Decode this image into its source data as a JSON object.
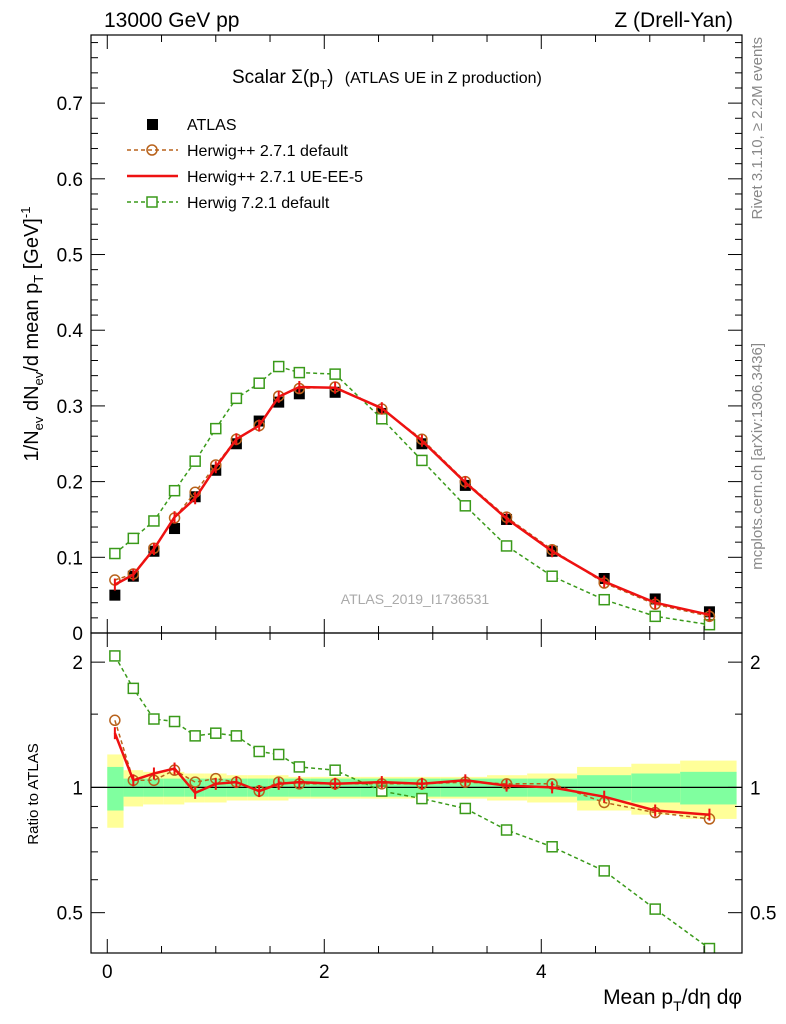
{
  "header": {
    "left": "13000 GeV pp",
    "right": "Z (Drell-Yan)"
  },
  "side_labels": {
    "rivet": "Rivet 3.1.10, ≥ 2.2M events",
    "mcplots": "mcplots.cern.ch [arXiv:1306.3436]"
  },
  "watermark": "ATLAS_2019_I1736531",
  "colors": {
    "atlas": "#000000",
    "herwigpp_default": "#b8621b",
    "herwigpp_ueee5": "#ee1111",
    "herwig7": "#3a9a1a",
    "band_inner": "#80ff9f",
    "band_outer": "#ffff99"
  },
  "chart_data": [
    {
      "type": "scatter",
      "panel": "main",
      "title": "Scalar Σ(pT) (ATLAS UE in Z production)",
      "title_main": "Scalar Σ(p",
      "title_sub": "T",
      "title_close": ")",
      "title_extra": "(ATLAS UE in Z production)",
      "ylabel": "1/Nev dNev/d mean pT [GeV]-1",
      "ylabel_parts": [
        "1/N",
        "ev",
        " dN",
        "ev",
        "/d mean p",
        "T",
        " [GeV]",
        "-1"
      ],
      "xlim": [
        -0.15,
        5.85
      ],
      "ylim": [
        0,
        0.79
      ],
      "yticks": [
        0,
        0.1,
        0.2,
        0.3,
        0.4,
        0.5,
        0.6,
        0.7
      ],
      "ytick_labels": [
        "0",
        "0.1",
        "0.2",
        "0.3",
        "0.4",
        "0.5",
        "0.6",
        "0.7"
      ],
      "x": [
        0.07,
        0.24,
        0.43,
        0.62,
        0.81,
        1.0,
        1.19,
        1.4,
        1.58,
        1.77,
        2.1,
        2.53,
        2.9,
        3.3,
        3.68,
        4.1,
        4.58,
        5.05,
        5.55
      ],
      "series": [
        {
          "name": "ATLAS",
          "key": "atlas",
          "values": [
            0.05,
            0.075,
            0.108,
            0.138,
            0.18,
            0.215,
            0.25,
            0.28,
            0.305,
            0.316,
            0.318,
            0.29,
            0.25,
            0.195,
            0.15,
            0.108,
            0.072,
            0.045,
            0.028
          ]
        },
        {
          "name": "Herwig++ 2.7.1 default",
          "key": "herwigpp_default",
          "values": [
            0.07,
            0.078,
            0.112,
            0.152,
            0.186,
            0.222,
            0.256,
            0.274,
            0.313,
            0.323,
            0.325,
            0.296,
            0.256,
            0.2,
            0.153,
            0.11,
            0.066,
            0.038,
            0.022
          ]
        },
        {
          "name": "Herwig++ 2.7.1 UE-EE-5",
          "key": "herwigpp_ueee5",
          "values": [
            0.064,
            0.077,
            0.111,
            0.153,
            0.178,
            0.219,
            0.256,
            0.274,
            0.312,
            0.325,
            0.324,
            0.297,
            0.254,
            0.199,
            0.151,
            0.108,
            0.068,
            0.04,
            0.024
          ]
        },
        {
          "name": "Herwig 7.2.1 default",
          "key": "herwig7",
          "values": [
            0.105,
            0.125,
            0.148,
            0.188,
            0.227,
            0.27,
            0.31,
            0.33,
            0.352,
            0.344,
            0.342,
            0.283,
            0.228,
            0.168,
            0.115,
            0.075,
            0.044,
            0.022,
            0.011
          ]
        }
      ],
      "legend": {
        "placement": "top-left"
      }
    },
    {
      "type": "scatter",
      "panel": "ratio",
      "ylabel": "Ratio to ATLAS",
      "xlabel": "Mean pT/dη dφ",
      "xlabel_parts": [
        "Mean p",
        "T",
        "/dη dφ"
      ],
      "xlim": [
        -0.15,
        5.85
      ],
      "ylim": [
        0.4,
        2.35
      ],
      "scale": "log",
      "yticks": [
        0.5,
        1,
        2
      ],
      "ytick_labels": [
        "0.5",
        "1",
        "2"
      ],
      "xticks": [
        0,
        2,
        4
      ],
      "xtick_labels": [
        "0",
        "2",
        "4"
      ],
      "band_edges": [
        0.0,
        0.15,
        0.33,
        0.52,
        0.71,
        0.9,
        1.1,
        1.29,
        1.49,
        1.67,
        1.87,
        2.33,
        2.73,
        3.07,
        3.5,
        3.87,
        4.33,
        4.83,
        5.28,
        5.8
      ],
      "band_inner": [
        0.12,
        0.05,
        0.05,
        0.05,
        0.05,
        0.05,
        0.05,
        0.05,
        0.05,
        0.05,
        0.05,
        0.05,
        0.05,
        0.05,
        0.05,
        0.05,
        0.07,
        0.08,
        0.09
      ],
      "band_outer": [
        0.2,
        0.1,
        0.09,
        0.09,
        0.08,
        0.08,
        0.07,
        0.07,
        0.07,
        0.06,
        0.06,
        0.06,
        0.06,
        0.06,
        0.07,
        0.08,
        0.12,
        0.14,
        0.16
      ],
      "x": [
        0.07,
        0.24,
        0.43,
        0.62,
        0.81,
        1.0,
        1.19,
        1.4,
        1.58,
        1.77,
        2.1,
        2.53,
        2.9,
        3.3,
        3.68,
        4.1,
        4.58,
        5.05,
        5.55
      ],
      "series": [
        {
          "name": "Herwig++ 2.7.1 default",
          "key": "herwigpp_default",
          "values": [
            1.45,
            1.04,
            1.04,
            1.1,
            1.03,
            1.05,
            1.03,
            0.98,
            1.03,
            1.02,
            1.02,
            1.02,
            1.02,
            1.03,
            1.02,
            1.02,
            0.92,
            0.87,
            0.84
          ]
        },
        {
          "name": "Herwig++ 2.7.1 UE-EE-5",
          "key": "herwigpp_ueee5",
          "values": [
            1.35,
            1.04,
            1.08,
            1.11,
            0.97,
            1.02,
            1.03,
            0.98,
            1.02,
            1.03,
            1.02,
            1.03,
            1.02,
            1.04,
            1.01,
            1.0,
            0.95,
            0.88,
            0.86
          ]
        },
        {
          "name": "Herwig 7.2.1 default",
          "key": "herwig7",
          "values": [
            2.07,
            1.73,
            1.46,
            1.44,
            1.33,
            1.35,
            1.33,
            1.22,
            1.2,
            1.12,
            1.1,
            0.98,
            0.94,
            0.89,
            0.79,
            0.72,
            0.63,
            0.51,
            0.41
          ]
        }
      ]
    }
  ]
}
